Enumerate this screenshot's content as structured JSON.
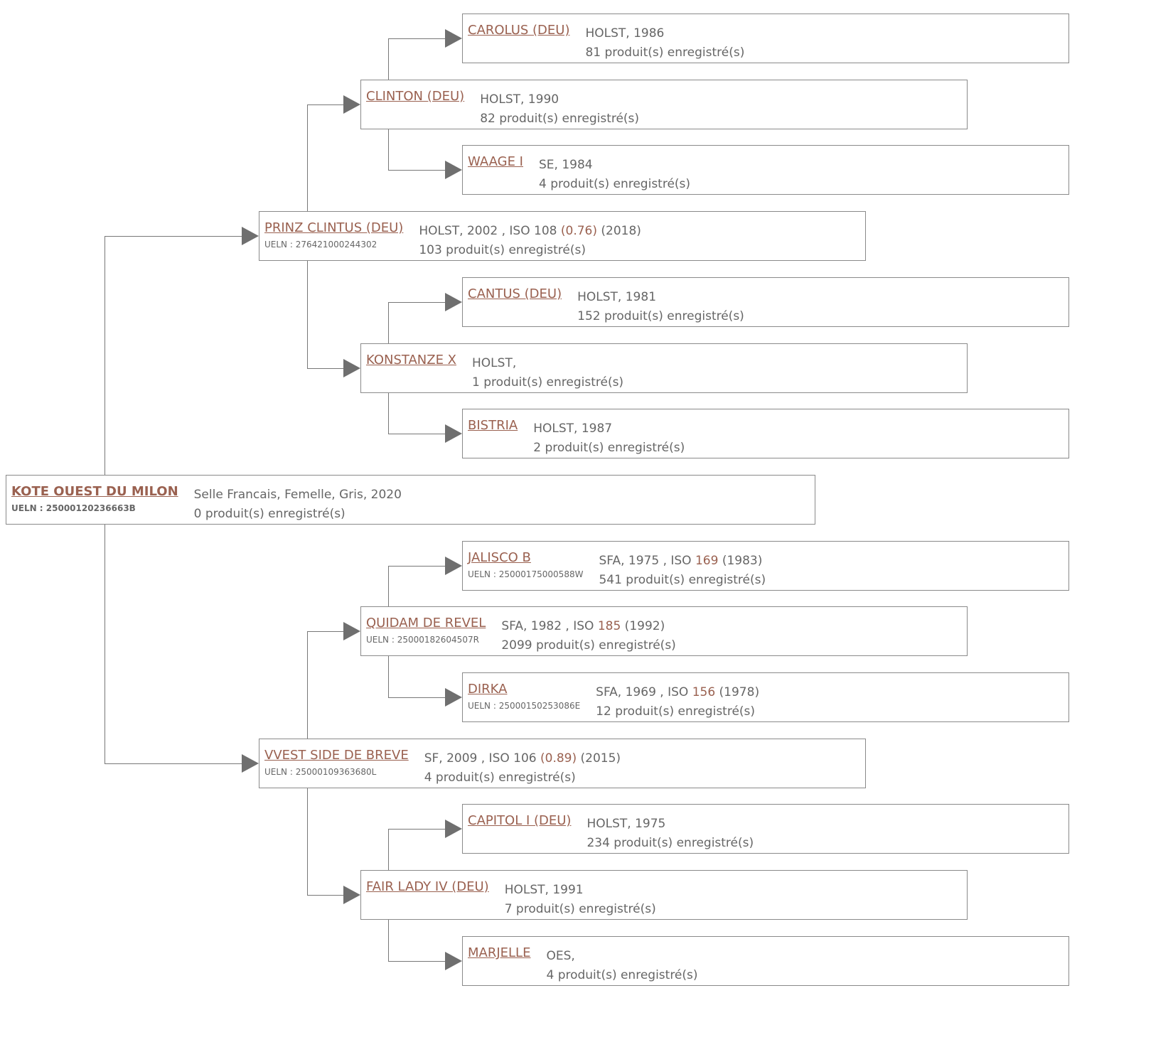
{
  "horses": [
    {
      "name": "CAROLUS (DEU)",
      "info1": {
        "pre": "HOLST, 1986"
      },
      "info2": "81 produit(s) enregistré(s)"
    },
    {
      "name": "CLINTON (DEU)",
      "info1": {
        "pre": "HOLST, 1990"
      },
      "info2": "82 produit(s) enregistré(s)"
    },
    {
      "name": "WAAGE I",
      "info1": {
        "pre": "SE, 1984"
      },
      "info2": "4 produit(s) enregistré(s)"
    },
    {
      "name": "PRINZ CLINTUS (DEU)",
      "ueln": "UELN : 276421000244302",
      "info1": {
        "pre": "HOLST, 2002 , ISO 108 ",
        "hl": "(0.76)",
        "post": " (2018)"
      },
      "info2": "103 produit(s) enregistré(s)"
    },
    {
      "name": "CANTUS (DEU)",
      "info1": {
        "pre": "HOLST, 1981"
      },
      "info2": "152 produit(s) enregistré(s)"
    },
    {
      "name": "KONSTANZE X",
      "info1": {
        "pre": "HOLST,"
      },
      "info2": "1 produit(s) enregistré(s)"
    },
    {
      "name": "BISTRIA",
      "info1": {
        "pre": "HOLST, 1987"
      },
      "info2": "2 produit(s) enregistré(s)"
    },
    {
      "name": "KOTE OUEST DU MILON",
      "ueln": "UELN : 25000120236663B",
      "info1": {
        "pre": "Selle Francais, Femelle, Gris, 2020"
      },
      "info2": "0 produit(s) enregistré(s)"
    },
    {
      "name": "JALISCO B",
      "ueln": "UELN : 25000175000588W",
      "info1": {
        "pre": "SFA, 1975 , ISO ",
        "hl": "169",
        "post": " (1983)"
      },
      "info2": "541 produit(s) enregistré(s)"
    },
    {
      "name": "QUIDAM DE REVEL",
      "ueln": "UELN : 25000182604507R",
      "info1": {
        "pre": "SFA, 1982 , ISO ",
        "hl": "185",
        "post": " (1992)"
      },
      "info2": "2099 produit(s) enregistré(s)"
    },
    {
      "name": "DIRKA",
      "ueln": "UELN : 25000150253086E",
      "info1": {
        "pre": "SFA, 1969 , ISO ",
        "hl": "156",
        "post": " (1978)"
      },
      "info2": "12 produit(s) enregistré(s)"
    },
    {
      "name": "VVEST SIDE DE BREVE",
      "ueln": "UELN : 25000109363680L",
      "info1": {
        "pre": "SF, 2009 , ISO 106 ",
        "hl": "(0.89)",
        "post": " (2015)"
      },
      "info2": "4 produit(s) enregistré(s)"
    },
    {
      "name": "CAPITOL I (DEU)",
      "info1": {
        "pre": "HOLST, 1975"
      },
      "info2": "234 produit(s) enregistré(s)"
    },
    {
      "name": "FAIR LADY IV (DEU)",
      "info1": {
        "pre": "HOLST, 1991"
      },
      "info2": "7 produit(s) enregistré(s)"
    },
    {
      "name": "MARJELLE",
      "info1": {
        "pre": "OES,"
      },
      "info2": "4 produit(s) enregistré(s)"
    }
  ],
  "colors": {
    "name": "#9a6150",
    "text": "#666666",
    "border": "#8a8a8a"
  }
}
